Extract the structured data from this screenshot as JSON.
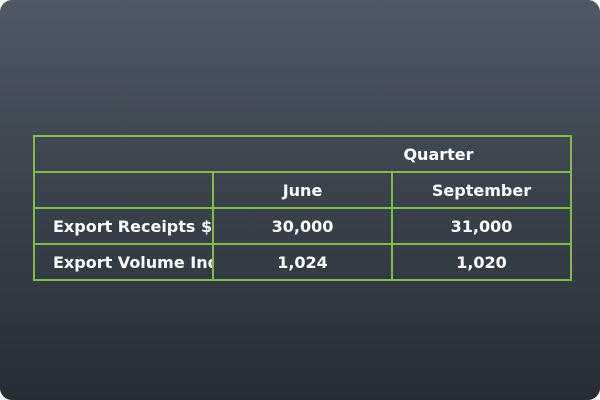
{
  "table": {
    "group_header": "Quarter",
    "columns": [
      "June",
      "September"
    ],
    "rows": [
      {
        "label": "Export Receipts $M",
        "values": [
          "30,000",
          "31,000"
        ]
      },
      {
        "label": "Export Volume Index",
        "values": [
          "1,024",
          "1,020"
        ]
      }
    ]
  },
  "colors": {
    "border": "#7fbf3f",
    "text": "#ffffff",
    "background_top": "#4f5965",
    "background_bottom": "#272d35"
  }
}
